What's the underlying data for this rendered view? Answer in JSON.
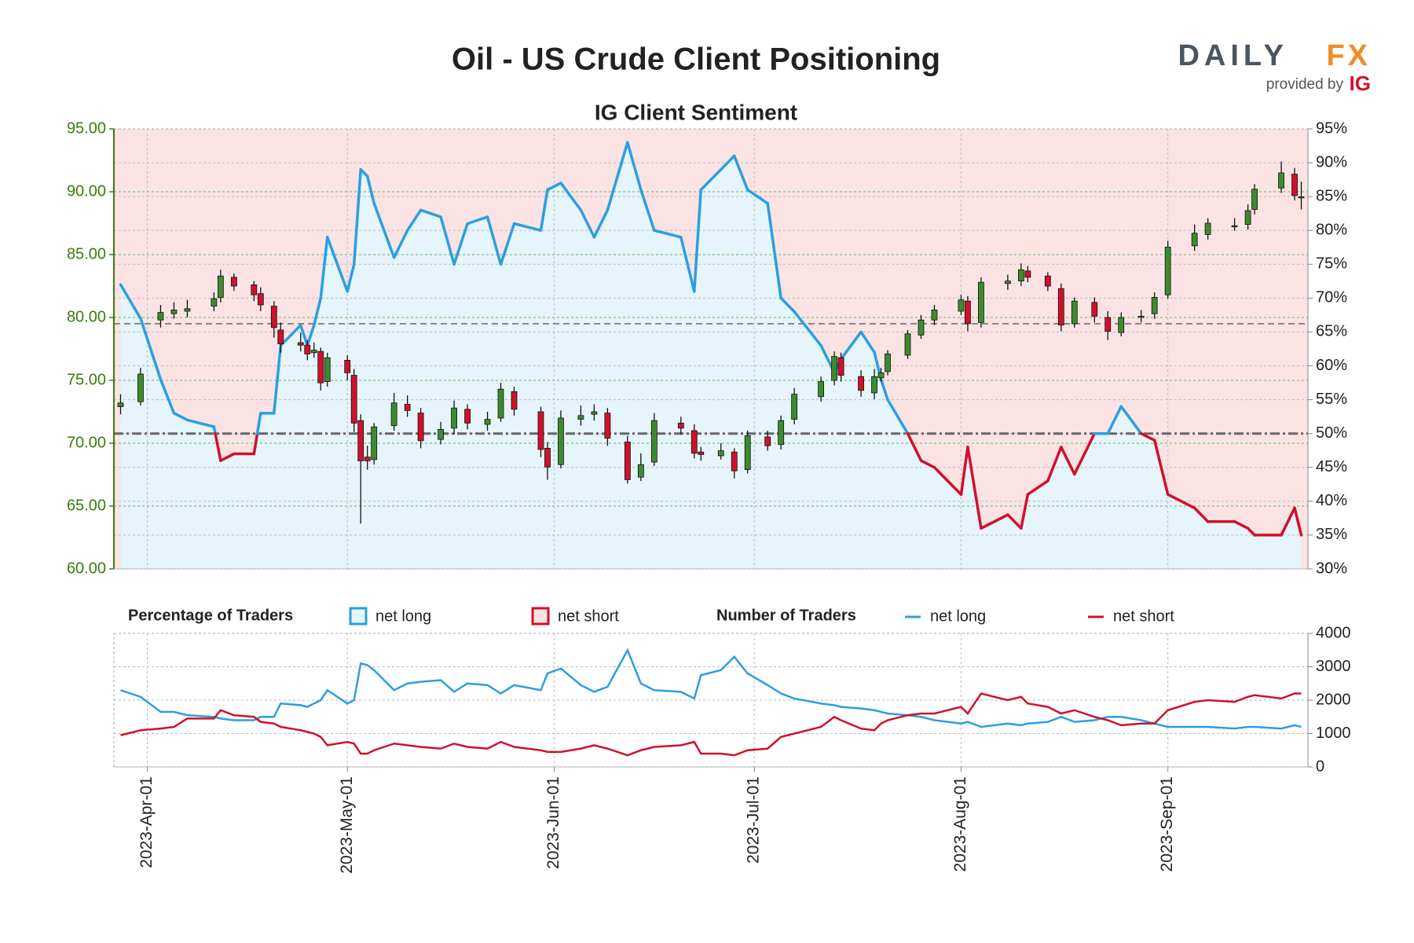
{
  "branding": {
    "brand": "DAILY",
    "brand_accent": "FX",
    "provided_by": "provided by",
    "provider": "IG"
  },
  "chart_data": [
    {
      "type": "candlestick",
      "title": "Oil - US Crude Client Positioning",
      "subtitle": "IG Client Sentiment",
      "x": [
        "2023-03-28",
        "2023-03-31",
        "2023-04-03",
        "2023-04-05",
        "2023-04-07",
        "2023-04-11",
        "2023-04-12",
        "2023-04-14",
        "2023-04-17",
        "2023-04-18",
        "2023-04-20",
        "2023-04-21",
        "2023-04-24",
        "2023-04-25",
        "2023-04-26",
        "2023-04-27",
        "2023-04-28",
        "2023-05-01",
        "2023-05-02",
        "2023-05-03",
        "2023-05-04",
        "2023-05-05",
        "2023-05-08",
        "2023-05-10",
        "2023-05-12",
        "2023-05-15",
        "2023-05-17",
        "2023-05-19",
        "2023-05-22",
        "2023-05-24",
        "2023-05-26",
        "2023-05-30",
        "2023-05-31",
        "2023-06-02",
        "2023-06-05",
        "2023-06-07",
        "2023-06-09",
        "2023-06-12",
        "2023-06-14",
        "2023-06-16",
        "2023-06-20",
        "2023-06-22",
        "2023-06-23",
        "2023-06-26",
        "2023-06-28",
        "2023-06-30",
        "2023-07-03",
        "2023-07-05",
        "2023-07-07",
        "2023-07-11",
        "2023-07-13",
        "2023-07-14",
        "2023-07-17",
        "2023-07-19",
        "2023-07-20",
        "2023-07-21",
        "2023-07-24",
        "2023-07-26",
        "2023-07-28",
        "2023-08-01",
        "2023-08-02",
        "2023-08-04",
        "2023-08-08",
        "2023-08-10",
        "2023-08-11",
        "2023-08-14",
        "2023-08-16",
        "2023-08-18",
        "2023-08-21",
        "2023-08-23",
        "2023-08-25",
        "2023-08-28",
        "2023-08-30",
        "2023-09-01",
        "2023-09-05",
        "2023-09-07",
        "2023-09-11",
        "2023-09-13",
        "2023-09-14",
        "2023-09-18",
        "2023-09-20",
        "2023-09-21"
      ],
      "open": [
        72.9,
        73.3,
        79.8,
        80.3,
        80.5,
        80.9,
        81.6,
        83.2,
        82.6,
        81.9,
        80.9,
        79.0,
        78.0,
        77.8,
        77.2,
        77.3,
        74.9,
        76.6,
        75.4,
        71.8,
        68.9,
        68.7,
        71.4,
        73.1,
        72.4,
        70.3,
        71.2,
        72.7,
        71.5,
        72.0,
        74.1,
        72.5,
        69.6,
        68.3,
        71.9,
        72.3,
        72.4,
        70.1,
        67.3,
        68.5,
        71.6,
        71.0,
        69.3,
        69.0,
        69.3,
        67.9,
        70.5,
        69.9,
        71.9,
        73.7,
        75.0,
        76.8,
        75.3,
        74.0,
        75.2,
        75.7,
        77.0,
        78.6,
        79.8,
        80.5,
        81.3,
        79.6,
        82.7,
        82.9,
        83.7,
        83.3,
        82.3,
        79.5,
        81.2,
        80.0,
        78.8,
        80.1,
        80.3,
        81.8,
        85.7,
        86.6,
        87.3,
        87.4,
        88.6,
        90.3,
        91.4,
        89.6
      ],
      "high": [
        73.9,
        76.0,
        81.0,
        81.2,
        81.4,
        82.0,
        83.8,
        83.5,
        82.9,
        82.4,
        81.3,
        79.6,
        78.8,
        78.2,
        78.0,
        77.6,
        77.2,
        77.0,
        75.9,
        72.3,
        69.8,
        71.6,
        74.0,
        73.8,
        72.8,
        71.7,
        73.4,
        73.1,
        72.5,
        74.8,
        74.5,
        72.9,
        70.1,
        72.6,
        73.0,
        73.1,
        72.8,
        70.6,
        69.2,
        72.4,
        72.1,
        71.5,
        69.7,
        70.0,
        69.6,
        71.0,
        71.0,
        72.2,
        74.4,
        75.3,
        77.3,
        77.2,
        75.8,
        75.9,
        76.0,
        77.4,
        79.0,
        80.2,
        81.0,
        81.8,
        81.7,
        83.2,
        83.4,
        84.3,
        84.1,
        83.6,
        82.7,
        81.6,
        81.6,
        80.5,
        80.4,
        80.6,
        82.0,
        86.1,
        87.4,
        87.9,
        87.9,
        89.0,
        90.6,
        92.4,
        91.9,
        90.8
      ],
      "low": [
        72.3,
        73.0,
        79.2,
        79.9,
        80.0,
        80.5,
        81.2,
        82.1,
        81.3,
        80.5,
        78.4,
        77.2,
        77.3,
        76.6,
        76.8,
        74.2,
        74.5,
        75.0,
        70.9,
        63.6,
        67.9,
        68.3,
        71.0,
        72.1,
        69.6,
        69.9,
        70.7,
        71.1,
        71.0,
        71.7,
        72.2,
        68.9,
        67.1,
        68.0,
        71.4,
        71.8,
        69.8,
        66.8,
        67.0,
        68.2,
        70.7,
        68.8,
        68.6,
        68.7,
        67.2,
        67.6,
        69.4,
        69.5,
        71.5,
        73.3,
        74.6,
        74.9,
        73.7,
        73.5,
        74.9,
        75.4,
        76.7,
        78.3,
        79.4,
        80.2,
        78.9,
        79.2,
        82.2,
        82.5,
        82.8,
        82.1,
        78.9,
        79.2,
        79.6,
        78.2,
        78.5,
        79.6,
        79.9,
        81.5,
        85.3,
        86.2,
        86.9,
        87.0,
        88.2,
        89.9,
        89.3,
        88.6
      ],
      "close": [
        73.2,
        75.5,
        80.4,
        80.6,
        80.7,
        81.5,
        83.3,
        82.5,
        81.8,
        81.0,
        79.2,
        77.9,
        77.8,
        77.1,
        77.4,
        74.8,
        76.8,
        75.6,
        71.6,
        68.6,
        68.6,
        71.3,
        73.2,
        72.6,
        70.2,
        71.1,
        72.8,
        71.6,
        71.9,
        74.3,
        72.7,
        69.5,
        68.1,
        72.0,
        72.2,
        72.5,
        70.4,
        67.1,
        68.3,
        71.8,
        71.2,
        69.2,
        69.1,
        69.4,
        67.8,
        70.6,
        69.8,
        71.8,
        73.9,
        74.9,
        76.9,
        75.4,
        74.2,
        75.3,
        75.6,
        77.1,
        78.7,
        79.8,
        80.6,
        81.4,
        79.5,
        82.8,
        82.9,
        83.8,
        83.2,
        82.5,
        79.4,
        81.3,
        80.1,
        78.9,
        80.0,
        80.1,
        81.6,
        85.6,
        86.7,
        87.5,
        87.3,
        88.5,
        90.2,
        91.5,
        89.7,
        89.6
      ],
      "up_color": "#3d8b2f",
      "down_color": "#d0112b",
      "sentiment": {
        "axis": "y2",
        "values": [
          72,
          67,
          58,
          53,
          52,
          51,
          46,
          47,
          47,
          53,
          53,
          63,
          66,
          63,
          66,
          70,
          79,
          71,
          75,
          89,
          88,
          84,
          76,
          80,
          83,
          82,
          75,
          81,
          82,
          75,
          81,
          80,
          86,
          87,
          83,
          79,
          83,
          93,
          86,
          80,
          79,
          71,
          86,
          89,
          91,
          86,
          84,
          70,
          68,
          63,
          59,
          61,
          65,
          62,
          58,
          55,
          50,
          46,
          45,
          41,
          48,
          36,
          38,
          36,
          41,
          43,
          48,
          44,
          50,
          50,
          54,
          50,
          49,
          41,
          39,
          37,
          37,
          36,
          35,
          35,
          39,
          35
        ]
      },
      "legend_title": "Percentage of Traders",
      "legend": [
        {
          "name": "net long",
          "color": "#2b9fe0",
          "fill": "#e6f4fb"
        },
        {
          "name": "net short",
          "color": "#d0112b",
          "fill": "#fbe3e4"
        }
      ],
      "hlines": [
        {
          "axis": "y2",
          "value": 50,
          "style": "dash-dot"
        },
        {
          "axis": "y",
          "value": 79.5,
          "style": "dashed"
        }
      ],
      "xlim": [
        "2023-03-27",
        "2023-09-22"
      ],
      "ylim": [
        60,
        95
      ],
      "yticks": [
        {
          "value": 60,
          "label": "60.00"
        },
        {
          "value": 65,
          "label": "65.00"
        },
        {
          "value": 70,
          "label": "70.00"
        },
        {
          "value": 75,
          "label": "75.00"
        },
        {
          "value": 80,
          "label": "80.00"
        },
        {
          "value": 85,
          "label": "85.00"
        },
        {
          "value": 90,
          "label": "90.00"
        },
        {
          "value": 95,
          "label": "95.00"
        }
      ],
      "y2lim": [
        30,
        95
      ],
      "y2ticks": [
        {
          "value": 30,
          "label": "30%"
        },
        {
          "value": 35,
          "label": "35%"
        },
        {
          "value": 40,
          "label": "40%"
        },
        {
          "value": 45,
          "label": "45%"
        },
        {
          "value": 50,
          "label": "50%"
        },
        {
          "value": 55,
          "label": "55%"
        },
        {
          "value": 60,
          "label": "60%"
        },
        {
          "value": 65,
          "label": "65%"
        },
        {
          "value": 70,
          "label": "70%"
        },
        {
          "value": 75,
          "label": "75%"
        },
        {
          "value": 80,
          "label": "80%"
        },
        {
          "value": 85,
          "label": "85%"
        },
        {
          "value": 90,
          "label": "90%"
        },
        {
          "value": 95,
          "label": "95%"
        }
      ],
      "grid": true
    },
    {
      "type": "line",
      "legend_title": "Number of Traders",
      "x": [
        "2023-03-28",
        "2023-03-31",
        "2023-04-03",
        "2023-04-05",
        "2023-04-07",
        "2023-04-11",
        "2023-04-12",
        "2023-04-14",
        "2023-04-17",
        "2023-04-18",
        "2023-04-20",
        "2023-04-21",
        "2023-04-24",
        "2023-04-25",
        "2023-04-26",
        "2023-04-27",
        "2023-04-28",
        "2023-05-01",
        "2023-05-02",
        "2023-05-03",
        "2023-05-04",
        "2023-05-05",
        "2023-05-08",
        "2023-05-10",
        "2023-05-12",
        "2023-05-15",
        "2023-05-17",
        "2023-05-19",
        "2023-05-22",
        "2023-05-24",
        "2023-05-26",
        "2023-05-30",
        "2023-05-31",
        "2023-06-02",
        "2023-06-05",
        "2023-06-07",
        "2023-06-09",
        "2023-06-12",
        "2023-06-14",
        "2023-06-16",
        "2023-06-20",
        "2023-06-22",
        "2023-06-23",
        "2023-06-26",
        "2023-06-28",
        "2023-06-30",
        "2023-07-03",
        "2023-07-05",
        "2023-07-07",
        "2023-07-11",
        "2023-07-13",
        "2023-07-14",
        "2023-07-17",
        "2023-07-19",
        "2023-07-20",
        "2023-07-21",
        "2023-07-24",
        "2023-07-26",
        "2023-07-28",
        "2023-08-01",
        "2023-08-02",
        "2023-08-04",
        "2023-08-08",
        "2023-08-10",
        "2023-08-11",
        "2023-08-14",
        "2023-08-16",
        "2023-08-18",
        "2023-08-21",
        "2023-08-23",
        "2023-08-25",
        "2023-08-28",
        "2023-08-30",
        "2023-09-01",
        "2023-09-05",
        "2023-09-07",
        "2023-09-11",
        "2023-09-13",
        "2023-09-14",
        "2023-09-18",
        "2023-09-20",
        "2023-09-21"
      ],
      "series": [
        {
          "name": "net long",
          "color": "#2b9fe0",
          "values": [
            2300,
            2100,
            1650,
            1650,
            1550,
            1500,
            1450,
            1400,
            1400,
            1500,
            1500,
            1900,
            1850,
            1800,
            1900,
            2000,
            2300,
            1900,
            2000,
            3100,
            3050,
            2900,
            2300,
            2500,
            2550,
            2600,
            2250,
            2500,
            2450,
            2200,
            2450,
            2300,
            2800,
            2950,
            2450,
            2250,
            2400,
            3500,
            2500,
            2300,
            2250,
            2050,
            2750,
            2900,
            3300,
            2800,
            2450,
            2200,
            2050,
            1900,
            1850,
            1800,
            1750,
            1700,
            1650,
            1600,
            1550,
            1500,
            1400,
            1300,
            1350,
            1200,
            1300,
            1250,
            1300,
            1350,
            1500,
            1350,
            1400,
            1500,
            1500,
            1400,
            1300,
            1200,
            1200,
            1200,
            1150,
            1200,
            1200,
            1150,
            1250,
            1200
          ]
        },
        {
          "name": "net short",
          "color": "#d0112b",
          "values": [
            950,
            1100,
            1150,
            1200,
            1450,
            1450,
            1700,
            1550,
            1500,
            1350,
            1300,
            1200,
            1100,
            1050,
            1000,
            900,
            650,
            750,
            700,
            400,
            400,
            500,
            700,
            650,
            600,
            550,
            700,
            600,
            550,
            750,
            600,
            500,
            450,
            450,
            550,
            650,
            550,
            350,
            500,
            600,
            650,
            750,
            400,
            400,
            350,
            500,
            550,
            900,
            1000,
            1200,
            1500,
            1400,
            1150,
            1100,
            1300,
            1400,
            1550,
            1600,
            1600,
            1800,
            1600,
            2200,
            2000,
            2100,
            1900,
            1800,
            1600,
            1700,
            1500,
            1400,
            1250,
            1300,
            1300,
            1700,
            1950,
            2000,
            1950,
            2100,
            2150,
            2050,
            2200,
            2200
          ]
        }
      ],
      "xlim": [
        "2023-03-27",
        "2023-09-22"
      ],
      "xticks": [
        {
          "value": "2023-04-01",
          "label": "2023-Apr-01"
        },
        {
          "value": "2023-05-01",
          "label": "2023-May-01"
        },
        {
          "value": "2023-06-01",
          "label": "2023-Jun-01"
        },
        {
          "value": "2023-07-01",
          "label": "2023-Jul-01"
        },
        {
          "value": "2023-08-01",
          "label": "2023-Aug-01"
        },
        {
          "value": "2023-09-01",
          "label": "2023-Sep-01"
        }
      ],
      "ylim": [
        0,
        4000
      ],
      "yticks": [
        0,
        1000,
        2000,
        3000,
        4000
      ],
      "grid": true
    }
  ]
}
